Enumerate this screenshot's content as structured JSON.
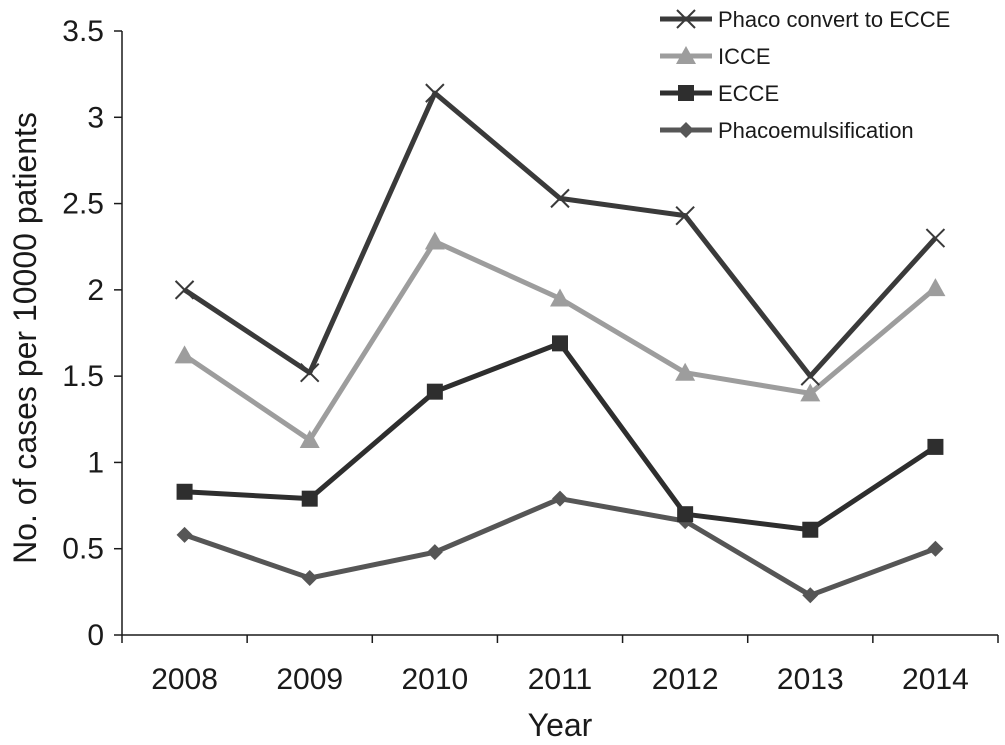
{
  "chart_data": {
    "type": "line",
    "title": "",
    "xlabel": "Year",
    "ylabel": "No. of cases per 10000 patients",
    "categories": [
      "2008",
      "2009",
      "2010",
      "2011",
      "2012",
      "2013",
      "2014"
    ],
    "ylim": [
      0,
      3.5
    ],
    "yticks": [
      "0",
      "0.5",
      "1",
      "1.5",
      "2",
      "2.5",
      "3",
      "3.5"
    ],
    "grid": false,
    "legend_position": "top-right",
    "series": [
      {
        "name": "Phaco convert to ECCE",
        "marker": "x",
        "color": "#3a3a3a",
        "values": [
          2.0,
          1.52,
          3.14,
          2.53,
          2.43,
          1.5,
          2.3
        ]
      },
      {
        "name": "ICCE",
        "marker": "triangle",
        "color": "#9d9d9d",
        "values": [
          1.62,
          1.13,
          2.28,
          1.95,
          1.52,
          1.4,
          2.01
        ]
      },
      {
        "name": "ECCE",
        "marker": "square",
        "color": "#2e2e2e",
        "values": [
          0.83,
          0.79,
          1.41,
          1.69,
          0.7,
          0.61,
          1.09
        ]
      },
      {
        "name": "Phacoemulsification",
        "marker": "diamond",
        "color": "#565656",
        "values": [
          0.58,
          0.33,
          0.48,
          0.79,
          0.66,
          0.23,
          0.5
        ]
      }
    ]
  }
}
